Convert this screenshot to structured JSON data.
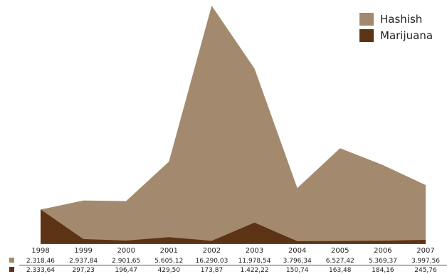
{
  "chart_data": {
    "type": "area",
    "x": [
      "1998",
      "1999",
      "2000",
      "2001",
      "2002",
      "2003",
      "2004",
      "2005",
      "2006",
      "2007"
    ],
    "series": [
      {
        "name": "Hashish",
        "color": "#a38a6e",
        "values": [
          2318.46,
          2937.84,
          2901.65,
          5605.12,
          16290.03,
          11978.54,
          3796.34,
          6527.42,
          5369.37,
          3997.56
        ],
        "labels": [
          "2.318,46",
          "2.937,84",
          "2.901,65",
          "5.605,12",
          "16.290,03",
          "11.978,54",
          "3.796,34",
          "6.527,42",
          "5.369,37",
          "3.997,56"
        ]
      },
      {
        "name": "Marijuana",
        "color": "#5c3415",
        "values": [
          2333.64,
          297.23,
          196.47,
          429.5,
          173.87,
          1422.22,
          150.74,
          163.48,
          184.16,
          245.76
        ],
        "labels": [
          "2.333,64",
          "297,23",
          "196,47",
          "429,50",
          "173,87",
          "1.422,22",
          "150,74",
          "163,48",
          "184,16",
          "245,76"
        ]
      }
    ],
    "ylim": [
      0,
      16290.03
    ],
    "legend_position": "top-right",
    "grid": false,
    "title": "",
    "xlabel": "",
    "ylabel": ""
  }
}
